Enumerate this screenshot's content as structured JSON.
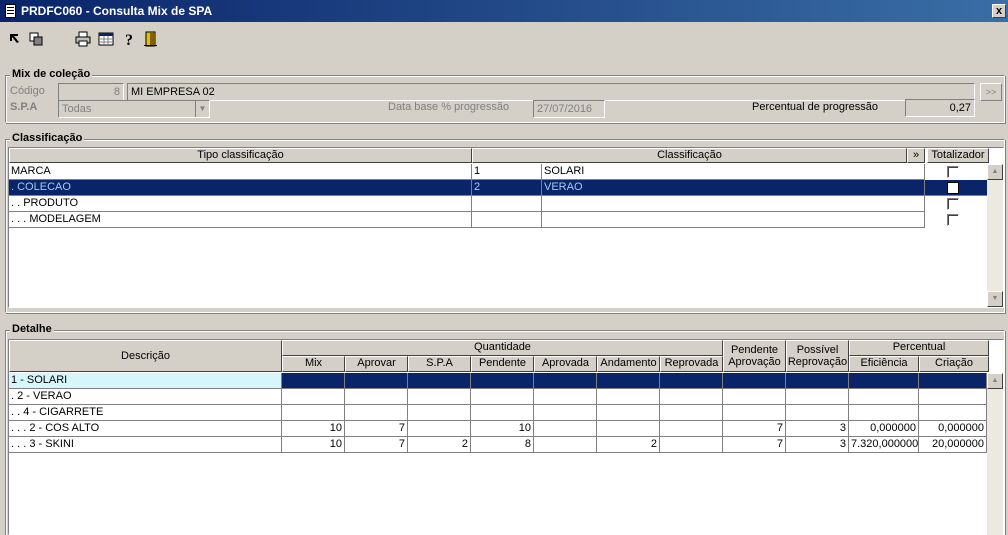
{
  "window": {
    "title": "PRDFC060 - Consulta Mix de SPA",
    "close_label": "x"
  },
  "toolbar": {
    "items": [
      {
        "icon": "expand-icon"
      },
      {
        "icon": "collapse-icon"
      },
      {
        "icon": "printer-icon"
      },
      {
        "icon": "spreadsheet-icon"
      },
      {
        "icon": "help-icon"
      },
      {
        "icon": "exit-door-icon"
      }
    ]
  },
  "mix": {
    "title": "Mix de coleção",
    "codigo_label": "Código",
    "codigo_value": "8",
    "empresa_value": "MI EMPRESA 02",
    "side_button": ">>",
    "spa_label": "S.P.A",
    "spa_value": "Todas",
    "data_base_label": "Data base % progressão",
    "data_base_value": "27/07/2016",
    "percentual_label": "Percentual de progressão",
    "percentual_value": "0,27"
  },
  "classificacao": {
    "title": "Classificação",
    "headers": {
      "tipo": "Tipo classificação",
      "classificacao": "Classificação",
      "expand": "»",
      "totalizador": "Totalizador"
    },
    "rows": [
      {
        "tipo": "MARCA",
        "code": "1",
        "name": "SOLARI"
      },
      {
        "tipo": ". COLECAO",
        "code": "2",
        "name": "VERAO"
      },
      {
        "tipo": ". . PRODUTO",
        "code": "",
        "name": ""
      },
      {
        "tipo": ". . . MODELAGEM",
        "code": "",
        "name": ""
      }
    ]
  },
  "detalhe": {
    "title": "Detalhe",
    "headers": {
      "descricao": "Descrição",
      "quantidade": "Quantidade",
      "mix": "Mix",
      "aprovar": "Aprovar",
      "spa": "S.P.A",
      "pendente": "Pendente",
      "aprovada": "Aprovada",
      "andamento": "Andamento",
      "reprovada": "Reprovada",
      "pend_aprov_1": "Pendente",
      "pend_aprov_2": "Aprovação",
      "poss_reprov_1": "Possível",
      "poss_reprov_2": "Reprovação",
      "percentual": "Percentual",
      "eficiencia": "Eficiência",
      "criacao": "Criação"
    },
    "rows": [
      {
        "desc": "1 - SOLARI",
        "v": [
          "",
          "",
          "",
          "",
          "",
          "",
          "",
          "",
          "",
          "",
          ""
        ]
      },
      {
        "desc": ". 2 - VERAO",
        "v": [
          "",
          "",
          "",
          "",
          "",
          "",
          "",
          "",
          "",
          "",
          ""
        ]
      },
      {
        "desc": ". . 4 - CIGARRETE",
        "v": [
          "",
          "",
          "",
          "",
          "",
          "",
          "",
          "",
          "",
          "",
          ""
        ]
      },
      {
        "desc": ". . . 2 - COS ALTO",
        "v": [
          "10",
          "7",
          "",
          "10",
          "",
          "",
          "",
          "7",
          "3",
          "0,000000",
          "0,000000"
        ]
      },
      {
        "desc": ". . . 3 - SKINI",
        "v": [
          "10",
          "7",
          "2",
          "8",
          "",
          "2",
          "",
          "7",
          "3",
          "7.320,000000",
          "20,000000"
        ]
      }
    ]
  }
}
